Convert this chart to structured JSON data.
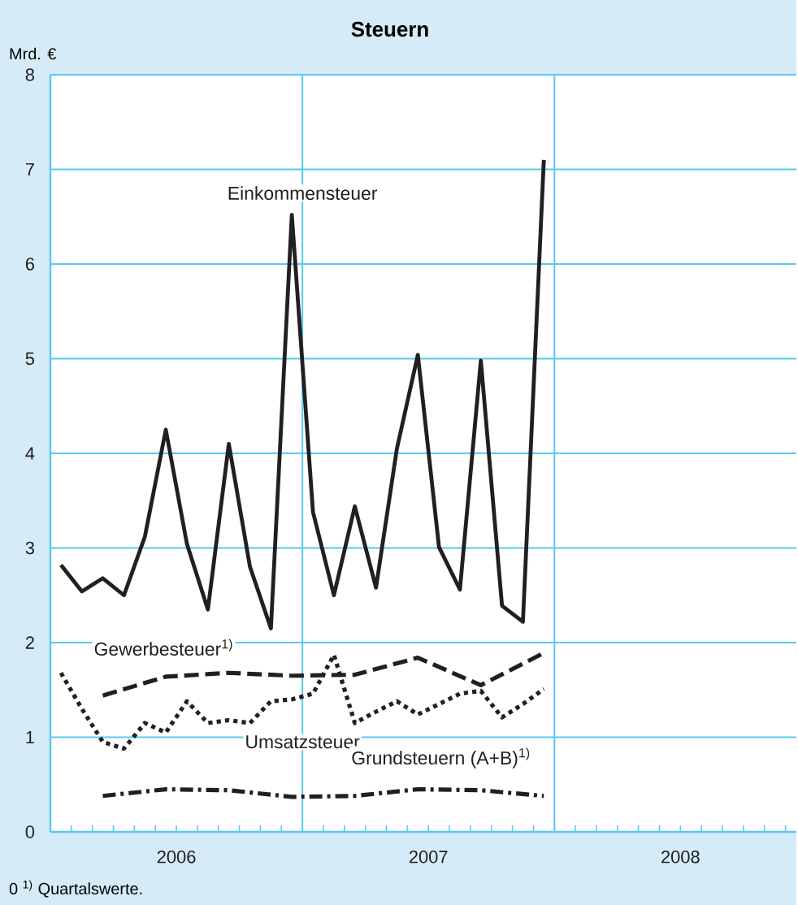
{
  "chart_data": {
    "type": "line",
    "title": "Steuern",
    "ylabel": "Mrd. €",
    "xlim": [
      2006,
      2008.96
    ],
    "ylim": [
      0,
      8
    ],
    "xticks": [
      {
        "value": 2006.5,
        "label": "2006"
      },
      {
        "value": 2007.5,
        "label": "2007"
      },
      {
        "value": 2008.5,
        "label": "2008"
      }
    ],
    "yticks": [
      0,
      1,
      2,
      3,
      4,
      5,
      6,
      7,
      8
    ],
    "grid": "y",
    "legend": false,
    "ref_lines": [
      {
        "axis": "x",
        "value": 2007,
        "color": "#5bc8f0"
      },
      {
        "axis": "x",
        "value": 2008,
        "color": "#5bc8f0"
      }
    ],
    "annotations": [
      "0 $^{1)}$ Quartalswerte."
    ],
    "series": [
      {
        "name": "Einkommensteuer",
        "color": "#231f20",
        "line_style": "solid",
        "x": [
          2006.042,
          2006.125,
          2006.208,
          2006.292,
          2006.375,
          2006.458,
          2006.542,
          2006.625,
          2006.708,
          2006.792,
          2006.875,
          2006.958,
          2007.042,
          2007.125,
          2007.208,
          2007.292,
          2007.375,
          2007.458,
          2007.542,
          2007.625,
          2007.708,
          2007.792,
          2007.875,
          2007.958
        ],
        "values": [
          2.82,
          2.54,
          2.68,
          2.5,
          3.12,
          4.25,
          3.04,
          2.35,
          4.1,
          2.8,
          2.15,
          6.52,
          3.38,
          2.5,
          3.44,
          2.58,
          4.05,
          5.04,
          3.01,
          2.56,
          4.98,
          2.39,
          2.22,
          7.1
        ]
      },
      {
        "name": "Umsatzsteuer",
        "color": "#231f20",
        "line_style": "dotted",
        "x": [
          2006.042,
          2006.125,
          2006.208,
          2006.292,
          2006.375,
          2006.458,
          2006.542,
          2006.625,
          2006.708,
          2006.792,
          2006.875,
          2006.958,
          2007.042,
          2007.125,
          2007.208,
          2007.292,
          2007.375,
          2007.458,
          2007.542,
          2007.625,
          2007.708,
          2007.792,
          2007.875,
          2007.958
        ],
        "values": [
          1.68,
          1.3,
          0.95,
          0.88,
          1.15,
          1.05,
          1.38,
          1.15,
          1.18,
          1.15,
          1.38,
          1.4,
          1.46,
          1.87,
          1.15,
          1.27,
          1.38,
          1.24,
          1.35,
          1.46,
          1.49,
          1.21,
          1.35,
          1.51
        ]
      },
      {
        "name": "Gewerbesteuer$^{1)}$",
        "color": "#231f20",
        "line_style": "dashed",
        "x": [
          2006.208,
          2006.458,
          2006.708,
          2006.958,
          2007.208,
          2007.458,
          2007.708,
          2007.958
        ],
        "values": [
          1.44,
          1.64,
          1.68,
          1.65,
          1.66,
          1.84,
          1.55,
          1.89
        ]
      },
      {
        "name": "Grundsteuern (A+B)$^{1)}$",
        "color": "#231f20",
        "line_style": "dashdot",
        "x": [
          2006.208,
          2006.458,
          2006.708,
          2006.958,
          2007.208,
          2007.458,
          2007.708,
          2007.958
        ],
        "values": [
          0.38,
          0.45,
          0.44,
          0.37,
          0.38,
          0.45,
          0.44,
          0.38
        ]
      }
    ]
  }
}
